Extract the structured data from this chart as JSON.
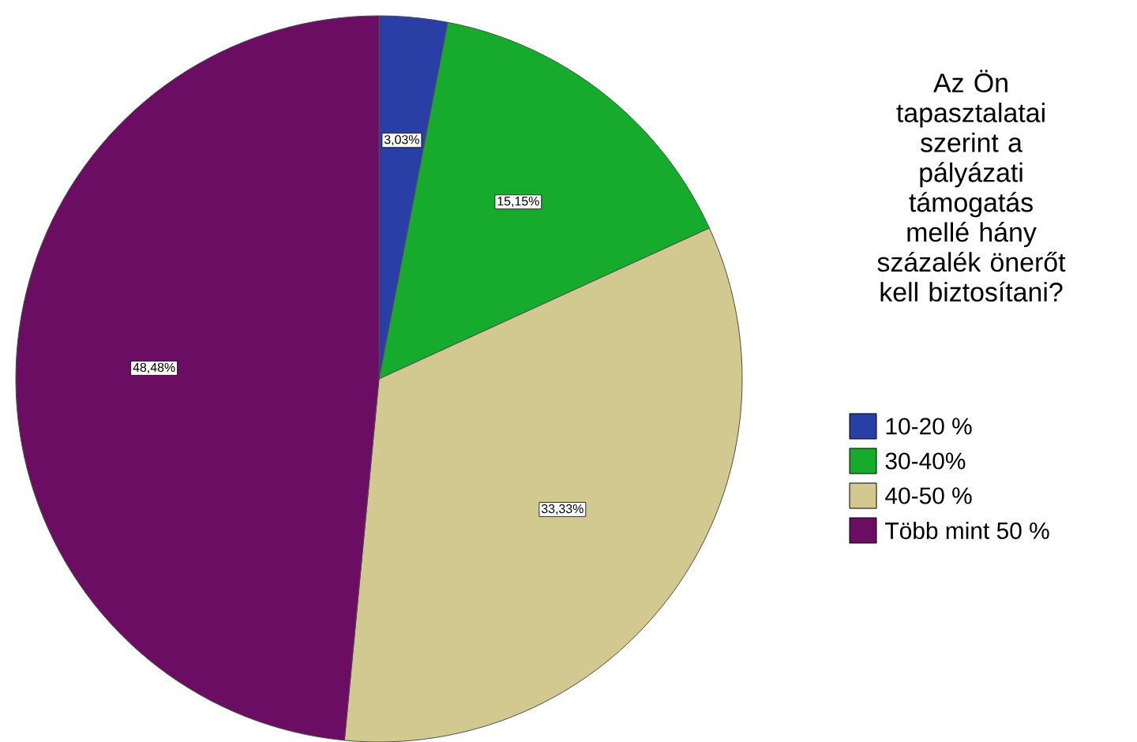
{
  "chart_data": {
    "type": "pie",
    "legend_title": "Az Ön tapasztalatai szerint a pályázati támogatás mellé hány százalék önerőt kell biztosítani?",
    "categories": [
      "10-20 %",
      "30-40%",
      "40-50 %",
      "Több mint 50 %"
    ],
    "values": [
      3.03,
      15.15,
      33.33,
      48.48
    ],
    "value_labels": [
      "3,03%",
      "15,15%",
      "33,33%",
      "48,48%"
    ],
    "colors": [
      "#2a3fa6",
      "#16ab2c",
      "#d1c98f",
      "#6b0d62"
    ],
    "legend": "right"
  }
}
